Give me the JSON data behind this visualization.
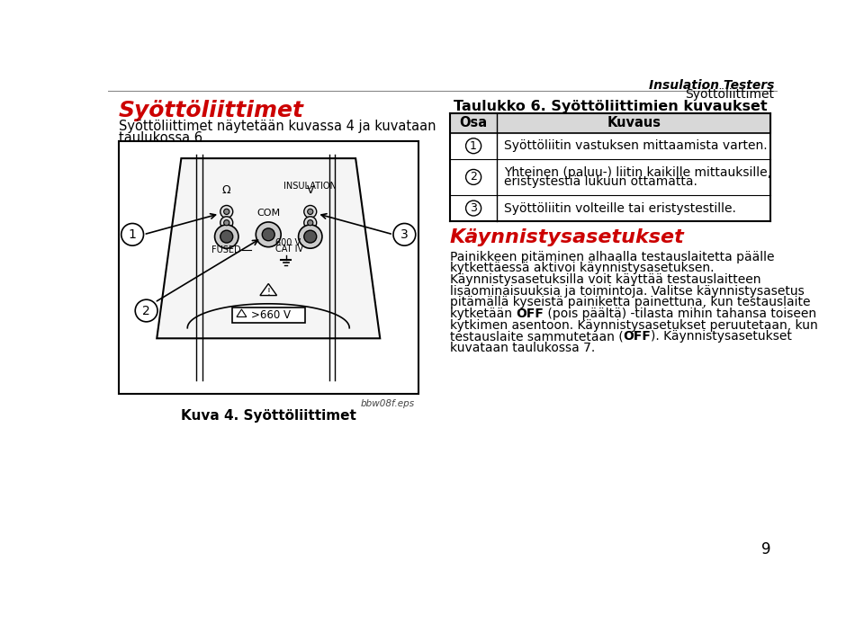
{
  "background_color": "#ffffff",
  "page_number": "9",
  "header_italic": "Insulation Testers",
  "header_section": "Syöttöliittimet",
  "title_left": "Syöttöliittimet",
  "title_left_color": "#cc0000",
  "body_left_line1": "Syöttöliittimet näytetään kuvassa 4 ja kuvataan",
  "body_left_line2": "taulukossa 6.",
  "figure_caption": "Kuva 4. Syöttöliittimet",
  "figure_note": "bbw08f.eps",
  "table_title": "Taulukko 6. Syöttöliittimien kuvaukset",
  "table_col1": "Osa",
  "table_col2": "Kuvaus",
  "table_rows": [
    {
      "num": "1",
      "text": "Syöttöliitin vastuksen mittaamista varten."
    },
    {
      "num": "2",
      "text": "Yhteinen (paluu-) liitin kaikille mittauksille,\neristystestiä lukuun ottamatta."
    },
    {
      "num": "3",
      "text": "Syöttöliitin volteille tai eristystestille."
    }
  ],
  "section2_title": "Käynnistysasetukset",
  "section2_title_color": "#cc0000",
  "section2_lines": [
    {
      "text": "Painikkeen pitäminen alhaalla testauslaitetta päälle",
      "bold_spans": []
    },
    {
      "text": "kytkettäessä aktivoi käynnistysasetuksen.",
      "bold_spans": []
    },
    {
      "text": "Käynnistysasetuksilla voit käyttää testauslaitteen",
      "bold_spans": []
    },
    {
      "text": "lisäominaisuuksia ja toimintoja. Valitse käynnistysasetus",
      "bold_spans": []
    },
    {
      "text": "pitämällä kyseistä painiketta painettuna, kun testauslaite",
      "bold_spans": []
    },
    {
      "text": "kytketään OFF (pois päältä) -tilasta mihin tahansa toiseen",
      "bold_spans": [
        [
          "kytketään ",
          "OFF",
          " (pois päältä) -tilasta mihin tahansa toiseen"
        ]
      ]
    },
    {
      "text": "kytkimen asentoon. Käynnistysasetukset peruutetaan, kun",
      "bold_spans": []
    },
    {
      "text": "testauslaite sammutetaan (OFF). Käynnistysasetukset",
      "bold_spans": [
        [
          "testauslaite sammutetaan (",
          "OFF",
          "). Käynnistysasetukset"
        ]
      ]
    },
    {
      "text": "kuvataan taulukossa 7.",
      "bold_spans": []
    }
  ]
}
